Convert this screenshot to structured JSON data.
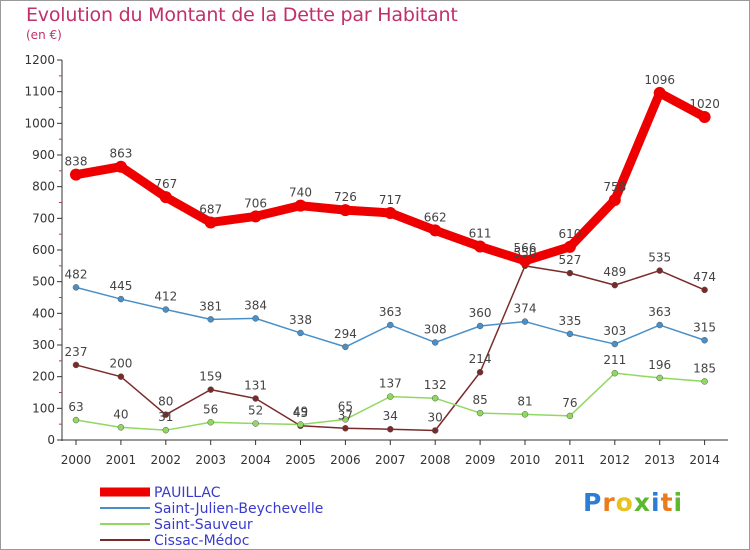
{
  "title": "Evolution du Montant de la Dette par Habitant",
  "unit": "(en €)",
  "logo": {
    "letters": [
      {
        "ch": "P",
        "color": "#2a7fd4"
      },
      {
        "ch": "r",
        "color": "#e87c1e"
      },
      {
        "ch": "o",
        "color": "#e8c21e"
      },
      {
        "ch": "x",
        "color": "#5cb82e"
      },
      {
        "ch": "i",
        "color": "#2a7fd4"
      },
      {
        "ch": "t",
        "color": "#e87c1e"
      },
      {
        "ch": "i",
        "color": "#5cb82e"
      }
    ]
  },
  "chart_data": {
    "type": "line",
    "title": "Evolution du Montant de la Dette par Habitant",
    "ylabel": "(en €)",
    "x": [
      "2000",
      "2001",
      "2002",
      "2003",
      "2004",
      "2005",
      "2006",
      "2007",
      "2008",
      "2009",
      "2010",
      "2011",
      "2012",
      "2013",
      "2014"
    ],
    "ylim": [
      0,
      1200
    ],
    "yticks": [
      0,
      100,
      200,
      300,
      400,
      500,
      600,
      700,
      800,
      900,
      1000,
      1100,
      1200
    ],
    "grid": false,
    "legend": "bottom-left",
    "series": [
      {
        "name": "PAUILLAC",
        "color": "#ee0000",
        "values": [
          838,
          863,
          767,
          687,
          706,
          740,
          726,
          717,
          662,
          611,
          566,
          610,
          758,
          1096,
          1020
        ],
        "labels": [
          "838",
          "863",
          "767",
          "687",
          "706",
          "740",
          "726",
          "717",
          "662",
          "611",
          "566",
          "610",
          "758",
          "1096",
          "1020"
        ]
      },
      {
        "name": "Saint-Julien-Beychevelle",
        "color": "#4a90c8",
        "values": [
          482,
          445,
          412,
          381,
          384,
          338,
          294,
          363,
          308,
          360,
          374,
          335,
          303,
          363,
          315
        ],
        "labels": [
          "482",
          "445",
          "412",
          "381",
          "384",
          "338",
          "294",
          "363",
          "308",
          "360",
          "374",
          "335",
          "303",
          "363",
          "315"
        ]
      },
      {
        "name": "Saint-Sauveur",
        "color": "#90d860",
        "values": [
          63,
          40,
          31,
          56,
          52,
          49,
          65,
          137,
          132,
          85,
          81,
          76,
          211,
          196,
          185
        ],
        "labels": [
          "63",
          "40",
          "31",
          "56",
          "52",
          "49",
          "65",
          "137",
          "132",
          "85",
          "81",
          "76",
          "211",
          "196",
          "185"
        ]
      },
      {
        "name": "Cissac-Médoc",
        "color": "#7a2a2a",
        "values": [
          237,
          200,
          80,
          159,
          131,
          45,
          37,
          34,
          30,
          214,
          550,
          527,
          489,
          535,
          474
        ],
        "labels": [
          "237",
          "200",
          "80",
          "159",
          "131",
          "45",
          "37",
          "34",
          "30",
          "214",
          "550",
          "527",
          "489",
          "535",
          "474"
        ]
      }
    ]
  }
}
